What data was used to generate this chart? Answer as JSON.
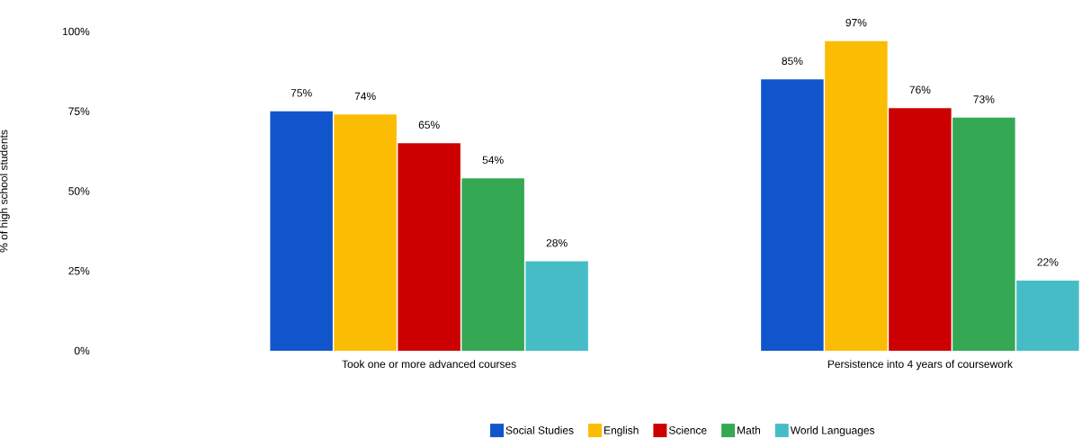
{
  "chart_data": {
    "type": "bar",
    "ylabel": "% of high school students",
    "categories": [
      "Took one or more advanced courses",
      "Persistence into 4 years of coursework"
    ],
    "series": [
      {
        "name": "Social Studies",
        "color": "#1155cc",
        "values": [
          75,
          85
        ],
        "value_labels": [
          "75%",
          "85%"
        ]
      },
      {
        "name": "English",
        "color": "#fbbc04",
        "values": [
          74,
          97
        ],
        "value_labels": [
          "74%",
          "97%"
        ]
      },
      {
        "name": "Science",
        "color": "#cc0000",
        "values": [
          65,
          76
        ],
        "value_labels": [
          "65%",
          "76%"
        ]
      },
      {
        "name": "Math",
        "color": "#34a853",
        "values": [
          54,
          73
        ],
        "value_labels": [
          "54%",
          "73%"
        ]
      },
      {
        "name": "World Languages",
        "color": "#46bdc6",
        "values": [
          28,
          22
        ],
        "value_labels": [
          "28%",
          "22%"
        ]
      }
    ],
    "ylim": [
      0,
      100
    ],
    "yticks": [
      {
        "value": 0,
        "label": "0%"
      },
      {
        "value": 25,
        "label": "25%"
      },
      {
        "value": 50,
        "label": "50%"
      },
      {
        "value": 75,
        "label": "75%"
      },
      {
        "value": 100,
        "label": "100%"
      }
    ],
    "legend": "bottom"
  }
}
